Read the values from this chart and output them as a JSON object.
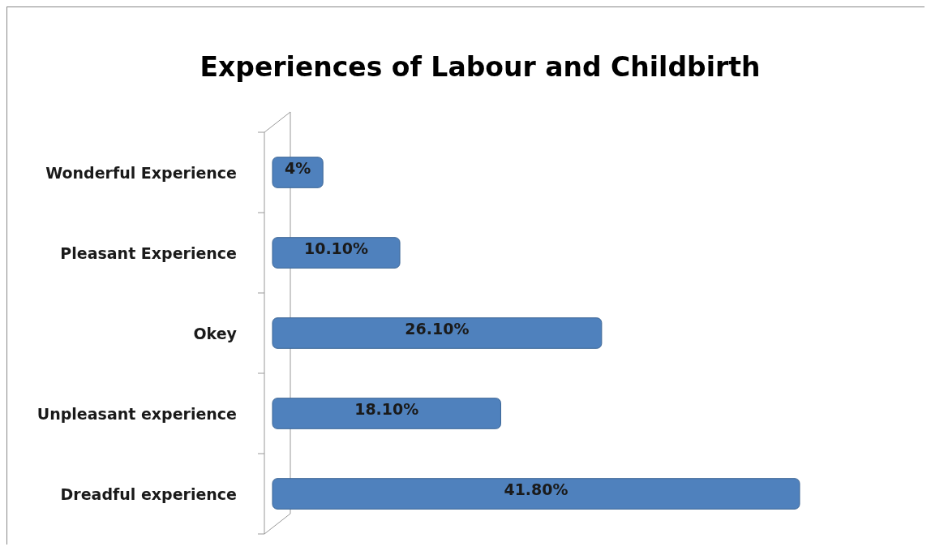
{
  "chart_data": {
    "type": "bar",
    "title": "Experiences of Labour and Childbirth",
    "orientation": "horizontal",
    "categories": [
      "Wonderful Experience",
      "Pleasant Experience",
      "Okey",
      "Unpleasant experience",
      "Dreadful experience"
    ],
    "values": [
      4,
      10.1,
      26.1,
      18.1,
      41.8
    ],
    "value_labels": [
      "4%",
      "10.10%",
      "26.10%",
      "18.10%",
      "41.80%"
    ],
    "color": "#4f81bd"
  }
}
